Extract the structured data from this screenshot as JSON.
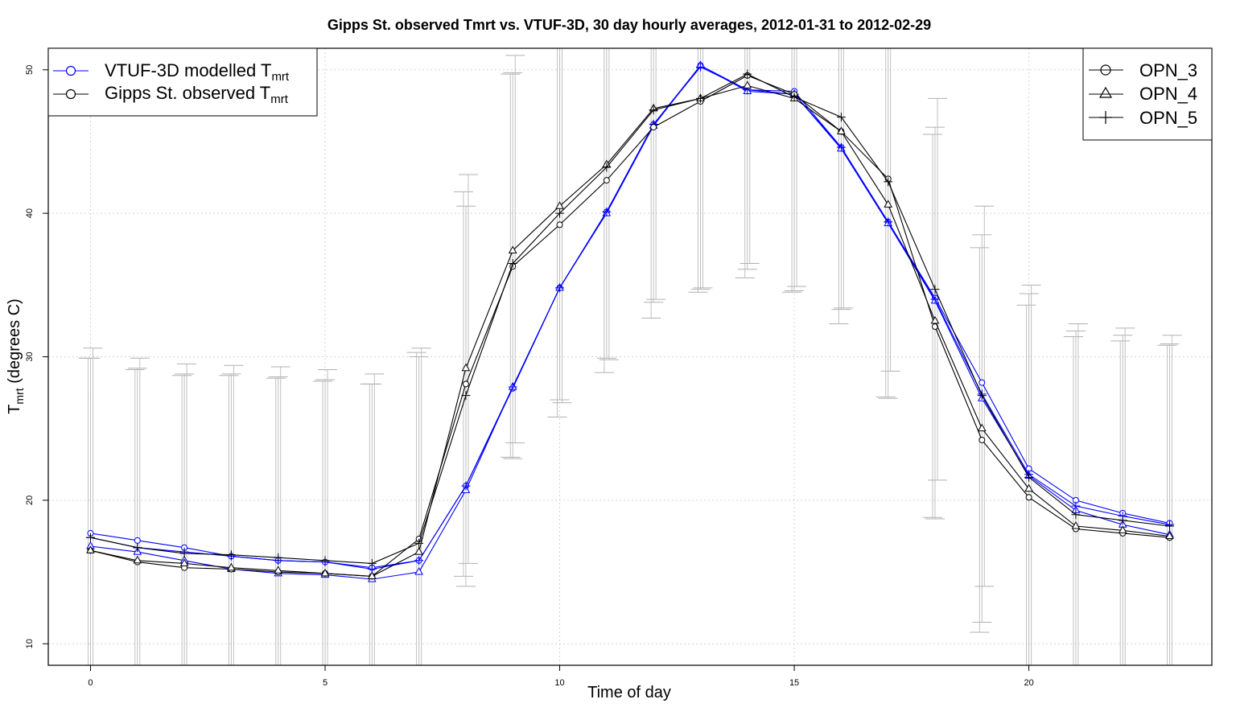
{
  "chart_data": {
    "type": "line",
    "title": "Gipps St. observed Tmrt vs. VTUF-3D, 30 day hourly averages, 2012-01-31 to 2012-02-29",
    "xlabel": "Time of day",
    "ylabel_main": "T",
    "ylabel_sub": "mrt",
    "ylabel_rest": " (degrees C)",
    "xlim": [
      -0.9,
      23.9
    ],
    "ylim": [
      8.5,
      51.5
    ],
    "xticks": [
      0,
      5,
      10,
      15,
      20
    ],
    "yticks": [
      10,
      20,
      30,
      40,
      50
    ],
    "grid": true,
    "x": [
      0,
      1,
      2,
      3,
      4,
      5,
      6,
      7,
      8,
      9,
      10,
      11,
      12,
      13,
      14,
      15,
      16,
      17,
      18,
      19,
      20,
      21,
      22,
      23
    ],
    "series": [
      {
        "model": "VTUF-3D",
        "group": "OPN_3",
        "marker": "circle",
        "color": "#0000ff",
        "values": [
          17.7,
          17.2,
          16.7,
          16.1,
          15.8,
          15.7,
          15.3,
          15.8,
          21.0,
          27.8,
          34.8,
          40.1,
          46.2,
          50.3,
          48.6,
          48.5,
          44.6,
          39.4,
          34.1,
          28.2,
          22.2,
          20.0,
          19.1,
          18.4
        ]
      },
      {
        "model": "VTUF-3D",
        "group": "OPN_4",
        "marker": "triangle",
        "color": "#0000ff",
        "values": [
          16.8,
          16.4,
          15.8,
          15.2,
          14.9,
          14.8,
          14.5,
          15.0,
          20.7,
          27.9,
          34.8,
          40.0,
          46.1,
          50.3,
          48.5,
          48.3,
          44.5,
          39.3,
          33.9,
          27.1,
          21.7,
          19.3,
          18.3,
          17.6
        ]
      },
      {
        "model": "VTUF-3D",
        "group": "OPN_5",
        "marker": "plus",
        "color": "#0000ff",
        "values": [
          17.4,
          16.7,
          16.4,
          16.1,
          15.8,
          15.7,
          15.2,
          15.8,
          21.0,
          27.9,
          34.8,
          40.1,
          46.2,
          50.2,
          48.6,
          48.3,
          44.6,
          39.4,
          34.0,
          27.4,
          21.8,
          19.6,
          18.9,
          18.3
        ]
      },
      {
        "model": "Gipps St. observed",
        "group": "OPN_3",
        "marker": "circle",
        "color": "#000000",
        "values": [
          16.5,
          15.7,
          15.3,
          15.2,
          15.0,
          14.9,
          14.7,
          17.3,
          28.1,
          36.3,
          39.2,
          42.3,
          46.0,
          47.8,
          49.6,
          48.3,
          45.7,
          42.4,
          32.1,
          24.2,
          20.2,
          18.0,
          17.7,
          17.4
        ]
      },
      {
        "model": "Gipps St. observed",
        "group": "OPN_4",
        "marker": "triangle",
        "color": "#000000",
        "values": [
          16.5,
          15.8,
          15.6,
          15.3,
          15.1,
          14.9,
          14.7,
          16.4,
          29.2,
          37.4,
          40.5,
          43.4,
          47.3,
          48.0,
          48.9,
          48.0,
          45.7,
          40.6,
          32.5,
          25.0,
          20.8,
          18.2,
          17.9,
          17.5
        ]
      },
      {
        "model": "Gipps St. observed",
        "group": "OPN_5",
        "marker": "plus",
        "color": "#000000",
        "values": [
          17.4,
          16.7,
          16.3,
          16.2,
          16.0,
          15.8,
          15.6,
          17.0,
          27.3,
          36.5,
          40.0,
          43.2,
          47.2,
          48.0,
          49.7,
          48.1,
          46.7,
          42.2,
          34.7,
          27.3,
          21.6,
          19.0,
          18.6,
          18.2
        ]
      }
    ],
    "error_bars": {
      "OPN_3": {
        "lower": [
          8.5,
          8.5,
          8.5,
          8.5,
          8.5,
          8.5,
          8.5,
          8.5,
          14.7,
          23.0,
          25.8,
          28.9,
          32.7,
          34.5,
          35.5,
          34.5,
          32.3,
          27.2,
          18.8,
          10.8,
          8.5,
          8.5,
          8.5,
          8.5
        ],
        "upper": [
          29.9,
          29.1,
          28.7,
          28.7,
          28.5,
          28.3,
          28.1,
          30.3,
          41.5,
          49.7,
          51.5,
          51.5,
          51.5,
          51.5,
          51.5,
          51.5,
          51.5,
          51.5,
          45.5,
          37.6,
          33.6,
          31.4,
          31.1,
          30.8
        ]
      },
      "OPN_4": {
        "lower": [
          8.5,
          8.5,
          8.5,
          8.5,
          8.5,
          8.5,
          8.5,
          8.5,
          14.0,
          22.9,
          27.0,
          29.9,
          33.8,
          34.7,
          36.1,
          34.6,
          33.3,
          27.1,
          18.7,
          11.5,
          8.5,
          8.5,
          8.5,
          8.5
        ],
        "upper": [
          29.9,
          29.2,
          28.8,
          28.8,
          28.6,
          28.4,
          28.1,
          30.0,
          40.5,
          49.8,
          51.5,
          51.5,
          51.5,
          51.5,
          51.5,
          51.5,
          51.5,
          51.5,
          46.0,
          38.5,
          34.4,
          31.8,
          31.5,
          30.9
        ]
      },
      "OPN_5": {
        "lower": [
          8.5,
          8.5,
          8.5,
          8.5,
          8.5,
          8.5,
          8.5,
          8.5,
          15.6,
          24.0,
          26.8,
          29.8,
          34.0,
          34.8,
          36.5,
          34.9,
          33.4,
          29.0,
          21.4,
          14.0,
          8.5,
          8.5,
          8.5,
          8.5
        ],
        "upper": [
          30.6,
          29.9,
          29.5,
          29.4,
          29.3,
          29.1,
          28.8,
          30.6,
          42.7,
          51.0,
          51.5,
          51.5,
          51.5,
          51.5,
          51.5,
          51.5,
          51.5,
          51.5,
          48.0,
          40.5,
          35.0,
          32.3,
          32.0,
          31.5
        ]
      }
    },
    "legend_models": {
      "position": "top-left",
      "entries": [
        {
          "main": "VTUF-3D modelled T",
          "sub": "mrt",
          "color": "#0000ff"
        },
        {
          "main": "Gipps St. observed T",
          "sub": "mrt",
          "color": "#000000"
        }
      ]
    },
    "legend_groups": {
      "position": "top-right",
      "entries": [
        {
          "label": "OPN_3",
          "marker": "circle"
        },
        {
          "label": "OPN_4",
          "marker": "triangle"
        },
        {
          "label": "OPN_5",
          "marker": "plus"
        }
      ]
    }
  }
}
